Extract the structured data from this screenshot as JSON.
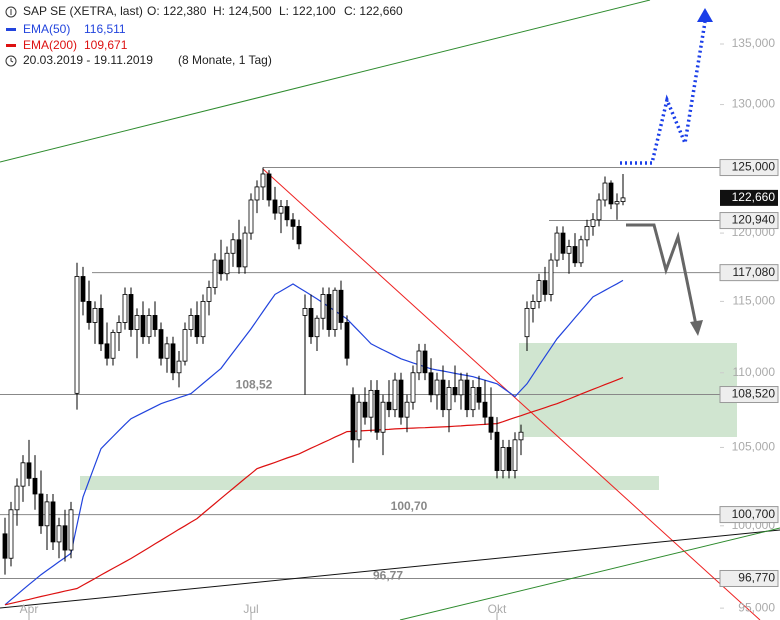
{
  "chart_data": {
    "type": "candlestick",
    "title": "SAP SE (XETRA, last)",
    "stats": [
      "O: 122,380",
      "H: 124,500",
      "L: 122,100",
      "C: 122,660"
    ],
    "period": "20.03.2019 - 19.11.2019",
    "period_note": "(8 Monate, 1 Tag)",
    "log_scale": true,
    "ylim": [
      94300,
      138750
    ],
    "yticks": [
      {
        "value": 95000,
        "label": "95,000"
      },
      {
        "value": 100000,
        "label": "100,000"
      },
      {
        "value": 105000,
        "label": "105,000"
      },
      {
        "value": 110000,
        "label": "110,000"
      },
      {
        "value": 115000,
        "label": "115,000"
      },
      {
        "value": 120000,
        "label": "120,000"
      },
      {
        "value": 125000,
        "label": "125,000"
      },
      {
        "value": 130000,
        "label": "130,000"
      },
      {
        "value": 135000,
        "label": "135,000"
      }
    ],
    "levels": [
      {
        "value": 125000,
        "label": "125,000"
      },
      {
        "value": 120940,
        "label": "120,940"
      },
      {
        "value": 117080,
        "label": "117,080"
      },
      {
        "value": 108520,
        "label": "108,520",
        "note": "108,52"
      },
      {
        "value": 100700,
        "label": "100,700",
        "note": "100,70"
      },
      {
        "value": 96770,
        "label": "96,770",
        "note": "96,77"
      }
    ],
    "close_label": "122,660",
    "up_color": "#ffffff",
    "down_color": "#000000",
    "categories": [
      null,
      null,
      null,
      null,
      "Apr",
      null,
      null,
      null,
      null,
      null,
      null,
      null,
      null,
      null,
      null,
      null,
      null,
      null,
      null,
      null,
      null,
      null,
      null,
      null,
      null,
      null,
      null,
      null,
      null,
      null,
      null,
      null,
      null,
      null,
      null,
      null,
      null,
      null,
      null,
      null,
      null,
      "Jul",
      null,
      null,
      null,
      null,
      null,
      null,
      null,
      null,
      null,
      null,
      null,
      null,
      null,
      null,
      null,
      null,
      null,
      null,
      null,
      null,
      null,
      null,
      null,
      null,
      null,
      null,
      null,
      null,
      null,
      null,
      null,
      null,
      null,
      null,
      null,
      null,
      null,
      null,
      null,
      null,
      "Okt",
      null,
      null,
      null,
      null,
      null,
      null,
      null,
      null,
      null,
      null,
      null,
      null,
      null,
      null,
      null,
      null,
      null,
      null,
      null,
      null,
      null
    ],
    "candles": [
      [
        99500,
        100500,
        97000,
        98000
      ],
      [
        98000,
        101500,
        97500,
        101000
      ],
      [
        101000,
        103000,
        100000,
        102500
      ],
      [
        102500,
        104500,
        101500,
        104000
      ],
      [
        104000,
        105500,
        102500,
        103000
      ],
      [
        103000,
        104500,
        101000,
        102000
      ],
      [
        102000,
        103500,
        99500,
        100000
      ],
      [
        100000,
        102000,
        98500,
        101500
      ],
      [
        101500,
        102000,
        98500,
        99000
      ],
      [
        99000,
        100500,
        98000,
        100000
      ],
      [
        100000,
        101000,
        97800,
        98500
      ],
      [
        98500,
        101500,
        98000,
        101000
      ],
      [
        108600,
        117800,
        107500,
        116800
      ],
      [
        116800,
        117500,
        114000,
        115000
      ],
      [
        115000,
        116500,
        113000,
        113500
      ],
      [
        113500,
        115000,
        112000,
        114500
      ],
      [
        114500,
        115500,
        111500,
        112000
      ],
      [
        112000,
        113500,
        110500,
        111000
      ],
      [
        111000,
        113000,
        110500,
        112800
      ],
      [
        112800,
        114000,
        111500,
        113500
      ],
      [
        113500,
        116000,
        113000,
        115500
      ],
      [
        115500,
        116000,
        112500,
        113000
      ],
      [
        113000,
        114500,
        111000,
        114000
      ],
      [
        114000,
        115000,
        112000,
        112500
      ],
      [
        112500,
        114500,
        112000,
        114000
      ],
      [
        114000,
        115000,
        112500,
        113000
      ],
      [
        113000,
        113500,
        110500,
        111000
      ],
      [
        111000,
        112500,
        110000,
        112000
      ],
      [
        112000,
        112500,
        109500,
        110000
      ],
      [
        110000,
        111500,
        109000,
        110800
      ],
      [
        110800,
        113500,
        110500,
        113000
      ],
      [
        113000,
        114500,
        112500,
        114000
      ],
      [
        114000,
        115000,
        112000,
        112500
      ],
      [
        112500,
        115500,
        112000,
        115000
      ],
      [
        115000,
        116500,
        114000,
        116000
      ],
      [
        116000,
        118500,
        115500,
        118000
      ],
      [
        118000,
        119500,
        116500,
        117000
      ],
      [
        117000,
        119000,
        116500,
        118500
      ],
      [
        118500,
        120000,
        117500,
        119500
      ],
      [
        119500,
        121000,
        117000,
        117500
      ],
      [
        117500,
        120500,
        117000,
        120000
      ],
      [
        120000,
        123000,
        119500,
        122500
      ],
      [
        122500,
        124000,
        121500,
        123500
      ],
      [
        123500,
        125000,
        122500,
        124500
      ],
      [
        124500,
        124800,
        122000,
        122500
      ],
      [
        122500,
        123500,
        121000,
        121500
      ],
      [
        121500,
        122500,
        120000,
        122000
      ],
      [
        122000,
        122500,
        120500,
        121000
      ],
      [
        121000,
        121500,
        119500,
        120500
      ],
      [
        120500,
        121000,
        118800,
        119200
      ],
      [
        114000,
        115500,
        108500,
        114500
      ],
      [
        114500,
        115500,
        112000,
        112500
      ],
      [
        112500,
        114000,
        111500,
        113800
      ],
      [
        113800,
        116000,
        113000,
        115500
      ],
      [
        115500,
        116000,
        112500,
        113000
      ],
      [
        113000,
        116000,
        112500,
        115800
      ],
      [
        115800,
        116500,
        113000,
        113500
      ],
      [
        113500,
        114000,
        110500,
        111000
      ],
      [
        108500,
        109000,
        104000,
        105500
      ],
      [
        105500,
        108500,
        105000,
        108000
      ],
      [
        108000,
        109000,
        106500,
        107000
      ],
      [
        107000,
        109500,
        106000,
        108800
      ],
      [
        108800,
        109500,
        105500,
        106000
      ],
      [
        106000,
        108500,
        104500,
        108000
      ],
      [
        108000,
        109500,
        107000,
        107500
      ],
      [
        107500,
        110000,
        107000,
        109500
      ],
      [
        109500,
        110000,
        106500,
        107000
      ],
      [
        107000,
        108500,
        106000,
        108000
      ],
      [
        108000,
        110500,
        107500,
        110000
      ],
      [
        110000,
        112000,
        109500,
        111500
      ],
      [
        111500,
        112000,
        109500,
        110000
      ],
      [
        110000,
        111000,
        108000,
        108500
      ],
      [
        108500,
        110000,
        107500,
        109500
      ],
      [
        109500,
        110500,
        107000,
        107500
      ],
      [
        107500,
        109500,
        106000,
        109000
      ],
      [
        109000,
        110500,
        108000,
        108500
      ],
      [
        108500,
        110000,
        107500,
        109500
      ],
      [
        109500,
        110000,
        107000,
        107500
      ],
      [
        107500,
        109500,
        107000,
        109000
      ],
      [
        109000,
        109800,
        107500,
        108000
      ],
      [
        108000,
        109500,
        106500,
        107000
      ],
      [
        107000,
        109000,
        105500,
        106000
      ],
      [
        106000,
        107000,
        103000,
        103500
      ],
      [
        103500,
        105500,
        103000,
        105000
      ],
      [
        105000,
        105500,
        103000,
        103500
      ],
      [
        103500,
        106000,
        103000,
        105500
      ],
      [
        105500,
        106500,
        104500,
        106000
      ],
      [
        112500,
        115000,
        111500,
        114500
      ],
      [
        114500,
        115500,
        113500,
        115000
      ],
      [
        115000,
        117000,
        114500,
        116500
      ],
      [
        116500,
        117500,
        115000,
        115500
      ],
      [
        115500,
        118500,
        115000,
        118000
      ],
      [
        118000,
        120500,
        117500,
        120000
      ],
      [
        120000,
        120500,
        118000,
        118500
      ],
      [
        118500,
        119500,
        117000,
        119000
      ],
      [
        119000,
        120000,
        117500,
        117800
      ],
      [
        117800,
        119800,
        117500,
        119500
      ],
      [
        119500,
        121000,
        119000,
        120500
      ],
      [
        120500,
        121500,
        119800,
        121000
      ],
      [
        121000,
        123000,
        120500,
        122500
      ],
      [
        122500,
        124300,
        122000,
        123800
      ],
      [
        123800,
        124000,
        121800,
        122200
      ],
      [
        122200,
        123000,
        121000,
        122380
      ],
      [
        122380,
        124500,
        122100,
        122660
      ]
    ],
    "series": [
      {
        "name": "EMA(50)",
        "color": "#2244dd",
        "last_label": "116,511",
        "values": [
          95200,
          95500,
          95800,
          96100,
          96400,
          96700,
          97000,
          97260,
          97520,
          97780,
          98040,
          98300,
          100050,
          101800,
          102840,
          103880,
          104920,
          105320,
          105720,
          106120,
          106520,
          106900,
          107100,
          107300,
          107500,
          107700,
          107900,
          108040,
          108170,
          108310,
          108440,
          108580,
          108920,
          109270,
          109610,
          109960,
          110300,
          110850,
          111400,
          111950,
          112500,
          113050,
          113660,
          114280,
          114890,
          115500,
          115750,
          116000,
          116250,
          115980,
          115720,
          115450,
          115180,
          114890,
          114610,
          114320,
          114040,
          113750,
          113310,
          112880,
          112440,
          112000,
          111790,
          111580,
          111380,
          111170,
          110960,
          110820,
          110680,
          110550,
          110410,
          110270,
          110190,
          110120,
          110040,
          109960,
          109880,
          109810,
          109730,
          109610,
          109490,
          109370,
          109250,
          108960,
          108670,
          108380,
          108820,
          109250,
          109870,
          110490,
          111110,
          111730,
          112350,
          112840,
          113330,
          113830,
          114320,
          114820,
          115320,
          115560,
          115800,
          116040,
          116270,
          116511
        ]
      },
      {
        "name": "EMA(200)",
        "color": "#dd1111",
        "last_label": "109,671",
        "values": [
          95200,
          95280,
          95360,
          95440,
          95520,
          95610,
          95690,
          95770,
          95850,
          95930,
          96010,
          96090,
          96170,
          96370,
          96570,
          96770,
          96980,
          97180,
          97380,
          97580,
          97780,
          97980,
          98200,
          98430,
          98650,
          98880,
          99100,
          99330,
          99550,
          99780,
          100000,
          100230,
          100450,
          100770,
          101080,
          101400,
          101720,
          102040,
          102350,
          102670,
          102990,
          103300,
          103620,
          103760,
          103890,
          104030,
          104170,
          104310,
          104440,
          104580,
          104760,
          104950,
          105130,
          105310,
          105490,
          105680,
          105860,
          106040,
          106060,
          106080,
          106110,
          106130,
          106150,
          106170,
          106190,
          106220,
          106240,
          106260,
          106270,
          106290,
          106300,
          106320,
          106340,
          106350,
          106370,
          106400,
          106420,
          106450,
          106470,
          106500,
          106520,
          106550,
          106570,
          106700,
          106840,
          106970,
          107100,
          107240,
          107370,
          107500,
          107630,
          107770,
          107900,
          108060,
          108220,
          108380,
          108550,
          108710,
          108870,
          109030,
          109190,
          109350,
          109510,
          109671
        ]
      }
    ]
  }
}
